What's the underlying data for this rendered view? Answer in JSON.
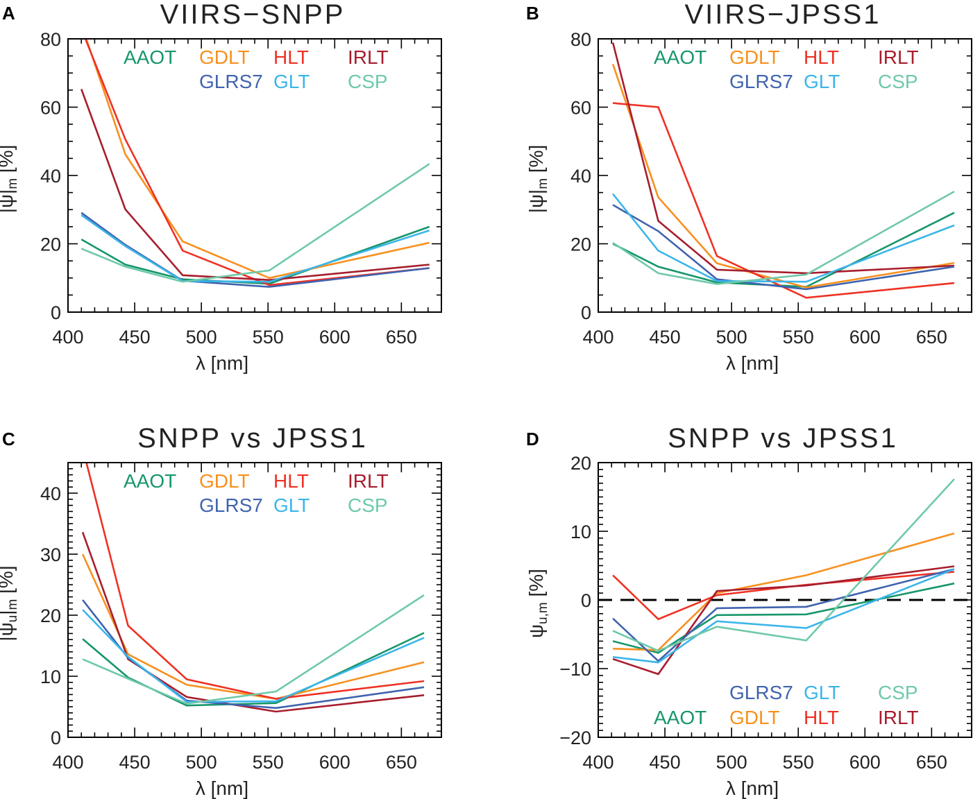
{
  "chart_data": [
    {
      "panel_label": "A",
      "title": "VIIRS−SNPP",
      "type": "line",
      "xlabel": "λ [nm]",
      "ylabel_segments": [
        {
          "t": "|ψ|",
          "sub": false
        },
        {
          "t": "m",
          "sub": true
        },
        {
          "t": " [%]",
          "sub": false
        }
      ],
      "xlim": [
        400,
        680
      ],
      "ylim": [
        0,
        80
      ],
      "xticks": [
        400,
        450,
        500,
        550,
        600,
        650
      ],
      "yticks": [
        0,
        20,
        40,
        60,
        80
      ],
      "legend_placement": "top",
      "legend_rows": [
        [
          "AAOT",
          "GDLT",
          "HLT",
          "IRLT"
        ],
        [
          "GLRS7",
          "GLT",
          "CSP"
        ]
      ],
      "x": [
        410,
        443,
        486,
        551,
        671
      ],
      "series": [
        {
          "name": "AAOT",
          "color": "#16966a",
          "values": [
            21.3,
            13.9,
            9.6,
            8.3,
            25.0
          ]
        },
        {
          "name": "GDLT",
          "color": "#f7901e",
          "values": [
            84.3,
            46.2,
            20.7,
            10.0,
            20.3
          ]
        },
        {
          "name": "HLT",
          "color": "#ee3124",
          "values": [
            83.0,
            50.6,
            18.0,
            7.9,
            12.9
          ]
        },
        {
          "name": "IRLT",
          "color": "#a71d2d",
          "values": [
            65.3,
            30.1,
            10.8,
            9.4,
            13.9
          ]
        },
        {
          "name": "GLRS7",
          "color": "#3f63ae",
          "values": [
            29.1,
            19.7,
            9.2,
            7.4,
            12.9
          ]
        },
        {
          "name": "GLT",
          "color": "#3bb5ea",
          "values": [
            28.4,
            19.3,
            9.1,
            8.9,
            23.9
          ]
        },
        {
          "name": "CSP",
          "color": "#6fc9a8",
          "values": [
            18.6,
            13.3,
            8.9,
            12.2,
            43.4
          ]
        }
      ]
    },
    {
      "panel_label": "B",
      "title": "VIIRS−JPSS1",
      "type": "line",
      "xlabel": "λ [nm]",
      "ylabel_segments": [
        {
          "t": "|ψ|",
          "sub": false
        },
        {
          "t": "m",
          "sub": true
        },
        {
          "t": " [%]",
          "sub": false
        }
      ],
      "xlim": [
        400,
        680
      ],
      "ylim": [
        0,
        80
      ],
      "xticks": [
        400,
        450,
        500,
        550,
        600,
        650
      ],
      "yticks": [
        0,
        20,
        40,
        60,
        80
      ],
      "legend_placement": "top",
      "legend_rows": [
        [
          "AAOT",
          "GDLT",
          "HLT",
          "IRLT"
        ],
        [
          "GLRS7",
          "GLT",
          "CSP"
        ]
      ],
      "x": [
        411,
        445,
        489,
        556,
        667
      ],
      "series": [
        {
          "name": "AAOT",
          "color": "#16966a",
          "values": [
            20.0,
            13.3,
            8.7,
            7.4,
            29.1
          ]
        },
        {
          "name": "GDLT",
          "color": "#f7901e",
          "values": [
            72.6,
            33.6,
            14.3,
            7.2,
            14.4
          ]
        },
        {
          "name": "HLT",
          "color": "#ee3124",
          "values": [
            61.2,
            60.0,
            16.4,
            4.2,
            8.5
          ]
        },
        {
          "name": "IRLT",
          "color": "#a71d2d",
          "values": [
            78.9,
            26.7,
            12.4,
            11.4,
            13.6
          ]
        },
        {
          "name": "GLRS7",
          "color": "#3f63ae",
          "values": [
            31.4,
            23.7,
            9.6,
            6.7,
            13.3
          ]
        },
        {
          "name": "GLT",
          "color": "#3bb5ea",
          "values": [
            34.6,
            18.0,
            9.1,
            8.9,
            25.4
          ]
        },
        {
          "name": "CSP",
          "color": "#6fc9a8",
          "values": [
            20.3,
            11.4,
            8.2,
            11.0,
            35.3
          ]
        }
      ]
    },
    {
      "panel_label": "C",
      "title": "SNPP vs JPSS1",
      "type": "line",
      "xlabel": "λ [nm]",
      "ylabel_segments": [
        {
          "t": "|ψ",
          "sub": false
        },
        {
          "t": "u",
          "sub": true
        },
        {
          "t": "|",
          "sub": false
        },
        {
          "t": "m",
          "sub": true
        },
        {
          "t": " [%]",
          "sub": false
        }
      ],
      "xlim": [
        400,
        680
      ],
      "ylim": [
        0,
        45
      ],
      "xticks": [
        400,
        450,
        500,
        550,
        600,
        650
      ],
      "yticks": [
        0,
        10,
        20,
        30,
        40
      ],
      "legend_placement": "top",
      "legend_rows": [
        [
          "AAOT",
          "GDLT",
          "HLT",
          "IRLT"
        ],
        [
          "GLRS7",
          "GLT",
          "CSP"
        ]
      ],
      "x": [
        411,
        445,
        489,
        556,
        667
      ],
      "series": [
        {
          "name": "AAOT",
          "color": "#16966a",
          "values": [
            16.1,
            9.8,
            5.2,
            5.6,
            17.1
          ]
        },
        {
          "name": "GDLT",
          "color": "#f7901e",
          "values": [
            30.0,
            13.6,
            8.6,
            6.3,
            12.3
          ]
        },
        {
          "name": "HLT",
          "color": "#ee3124",
          "values": [
            47.4,
            18.3,
            9.5,
            6.3,
            9.2
          ]
        },
        {
          "name": "IRLT",
          "color": "#a71d2d",
          "values": [
            33.6,
            12.8,
            6.6,
            4.2,
            6.9
          ]
        },
        {
          "name": "GLRS7",
          "color": "#3f63ae",
          "values": [
            22.5,
            13.0,
            6.0,
            4.8,
            8.2
          ]
        },
        {
          "name": "GLT",
          "color": "#3bb5ea",
          "values": [
            20.9,
            13.2,
            5.8,
            5.9,
            16.3
          ]
        },
        {
          "name": "CSP",
          "color": "#6fc9a8",
          "values": [
            12.8,
            9.6,
            5.5,
            7.5,
            23.3
          ]
        }
      ]
    },
    {
      "panel_label": "D",
      "title": "SNPP vs JPSS1",
      "type": "line",
      "xlabel": "λ [nm]",
      "ylabel_segments": [
        {
          "t": "ψ",
          "sub": false
        },
        {
          "t": "u,m",
          "sub": true
        },
        {
          "t": " [%]",
          "sub": false
        }
      ],
      "xlim": [
        400,
        680
      ],
      "ylim": [
        -20,
        20
      ],
      "xticks": [
        400,
        450,
        500,
        550,
        600,
        650
      ],
      "yticks": [
        -20,
        -10,
        0,
        10,
        20
      ],
      "ytick_labels": [
        "−20",
        "−10",
        "0",
        "10",
        "20"
      ],
      "reference_line": 0,
      "legend_placement": "bottom",
      "legend_rows": [
        [
          "GLRS7",
          "GLT",
          "CSP"
        ],
        [
          "AAOT",
          "GDLT",
          "HLT",
          "IRLT"
        ]
      ],
      "x": [
        411,
        445,
        489,
        556,
        667
      ],
      "series": [
        {
          "name": "AAOT",
          "color": "#16966a",
          "values": [
            -6.0,
            -7.7,
            -2.2,
            -2.1,
            2.4
          ]
        },
        {
          "name": "GDLT",
          "color": "#f7901e",
          "values": [
            -7.1,
            -7.3,
            1.0,
            3.6,
            9.7
          ]
        },
        {
          "name": "HLT",
          "color": "#ee3124",
          "values": [
            3.6,
            -2.8,
            0.7,
            2.2,
            4.1
          ]
        },
        {
          "name": "IRLT",
          "color": "#a71d2d",
          "values": [
            -8.6,
            -10.8,
            1.3,
            2.1,
            4.9
          ]
        },
        {
          "name": "GLRS7",
          "color": "#3f63ae",
          "values": [
            -2.7,
            -8.9,
            -1.2,
            -1.0,
            4.5
          ]
        },
        {
          "name": "GLT",
          "color": "#3bb5ea",
          "values": [
            -8.3,
            -9.1,
            -3.1,
            -4.1,
            4.5
          ]
        },
        {
          "name": "CSP",
          "color": "#6fc9a8",
          "values": [
            -4.5,
            -7.4,
            -3.9,
            -5.9,
            17.6
          ]
        }
      ]
    }
  ]
}
